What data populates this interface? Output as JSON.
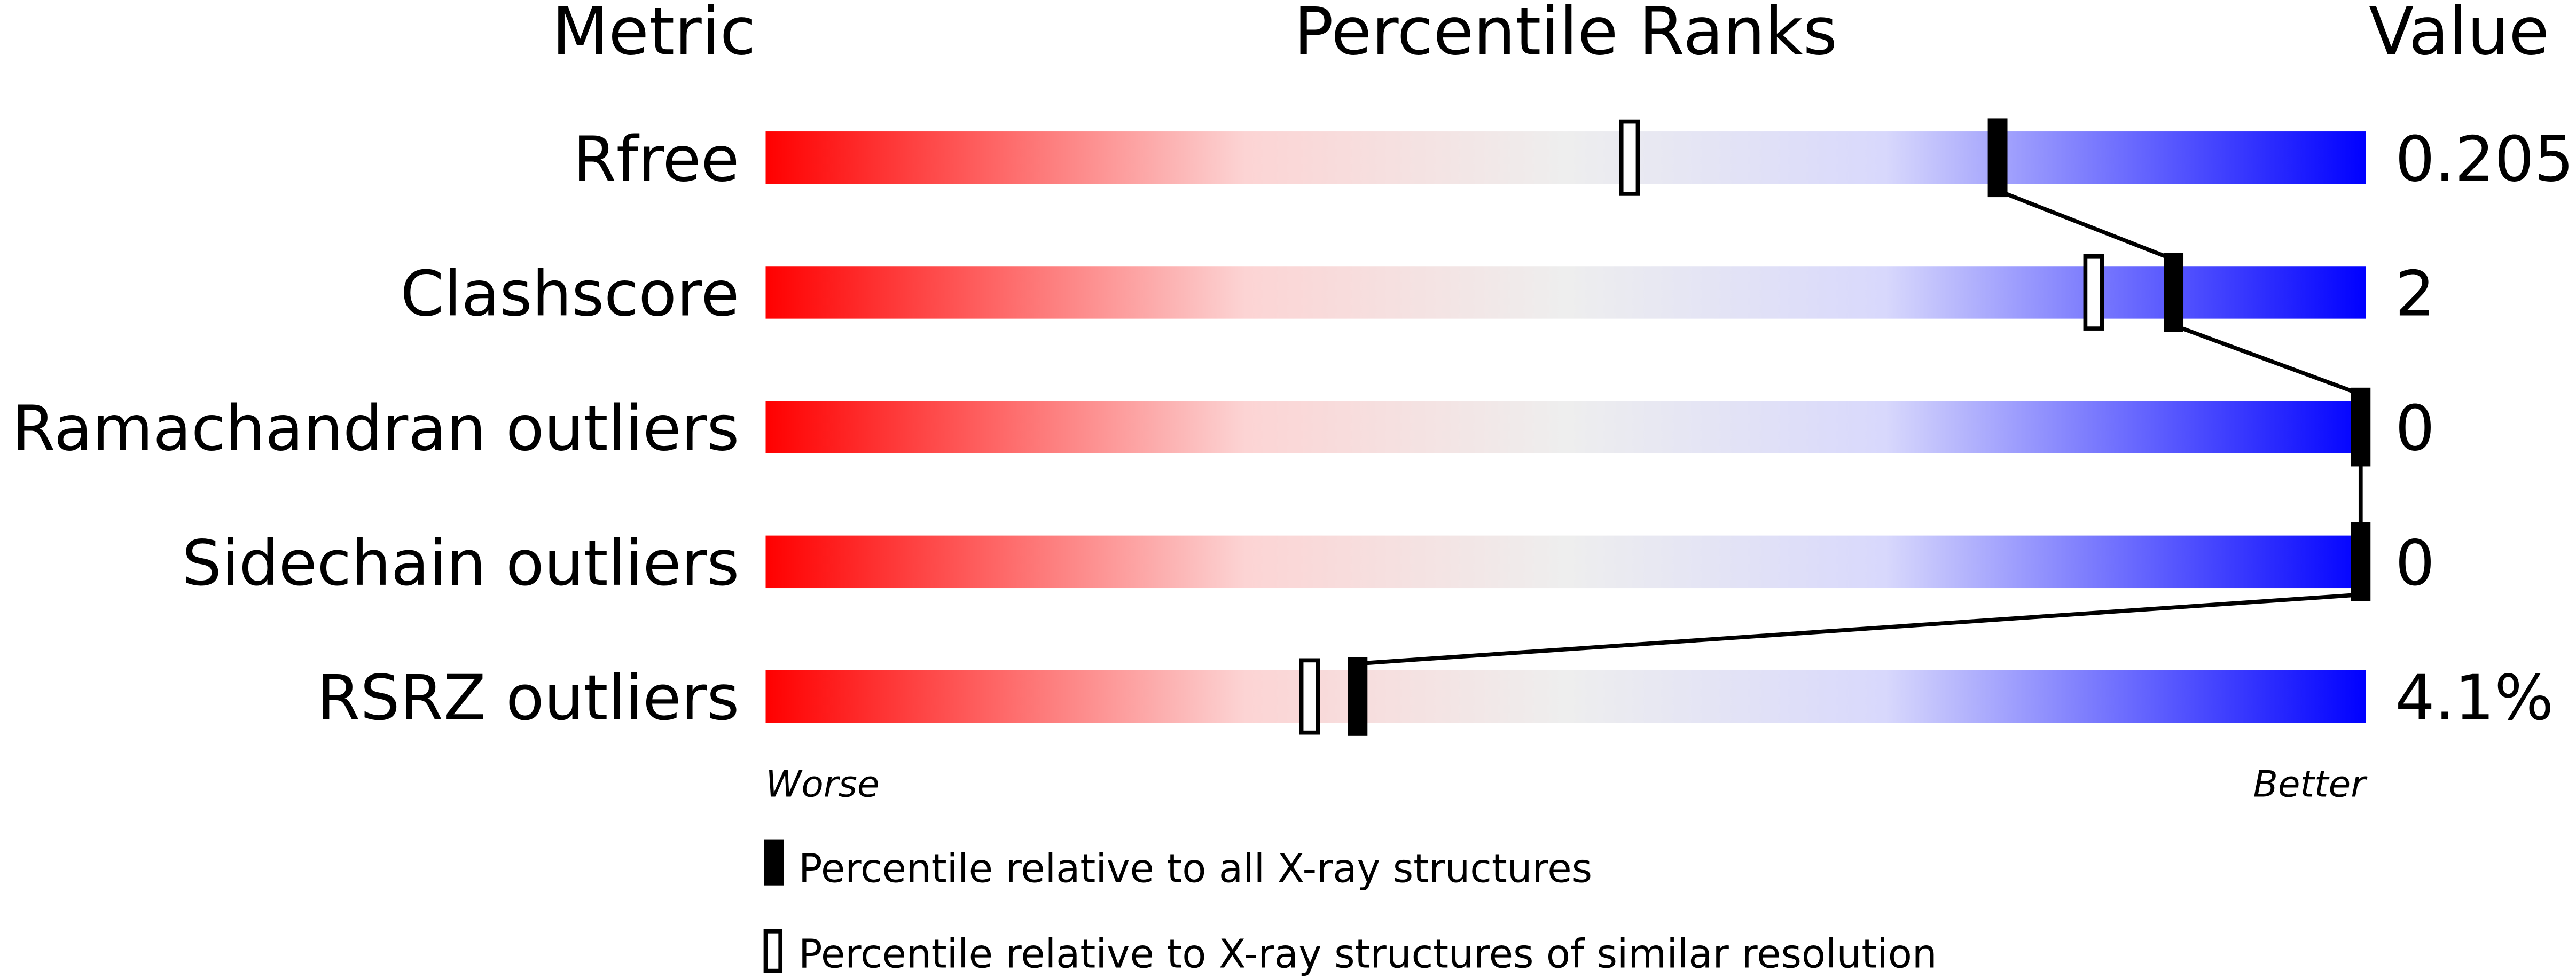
{
  "chart_data": {
    "type": "bar",
    "title": "Percentile Ranks",
    "column_headers": {
      "metric": "Metric",
      "ranks": "Percentile Ranks",
      "value": "Value"
    },
    "xlim": [
      0,
      100
    ],
    "axis_labels": {
      "left": "Worse",
      "right": "Better"
    },
    "gradient_colors": {
      "worse": "#ff0000",
      "middle": "#eeeeee",
      "better": "#0000ff"
    },
    "rows": [
      {
        "metric": "Rfree",
        "value": "0.205",
        "percentile_all": 77,
        "percentile_similar": 54
      },
      {
        "metric": "Clashscore",
        "value": "2",
        "percentile_all": 88,
        "percentile_similar": 83
      },
      {
        "metric": "Ramachandran outliers",
        "value": "0",
        "percentile_all": 100,
        "percentile_similar": null
      },
      {
        "metric": "Sidechain outliers",
        "value": "0",
        "percentile_all": 100,
        "percentile_similar": null
      },
      {
        "metric": "RSRZ outliers",
        "value": "4.1%",
        "percentile_all": 37,
        "percentile_similar": 34
      }
    ],
    "legend": [
      {
        "marker": "filled",
        "label": "Percentile relative to all X-ray structures"
      },
      {
        "marker": "hollow",
        "label": "Percentile relative to X-ray structures of similar resolution"
      }
    ]
  }
}
